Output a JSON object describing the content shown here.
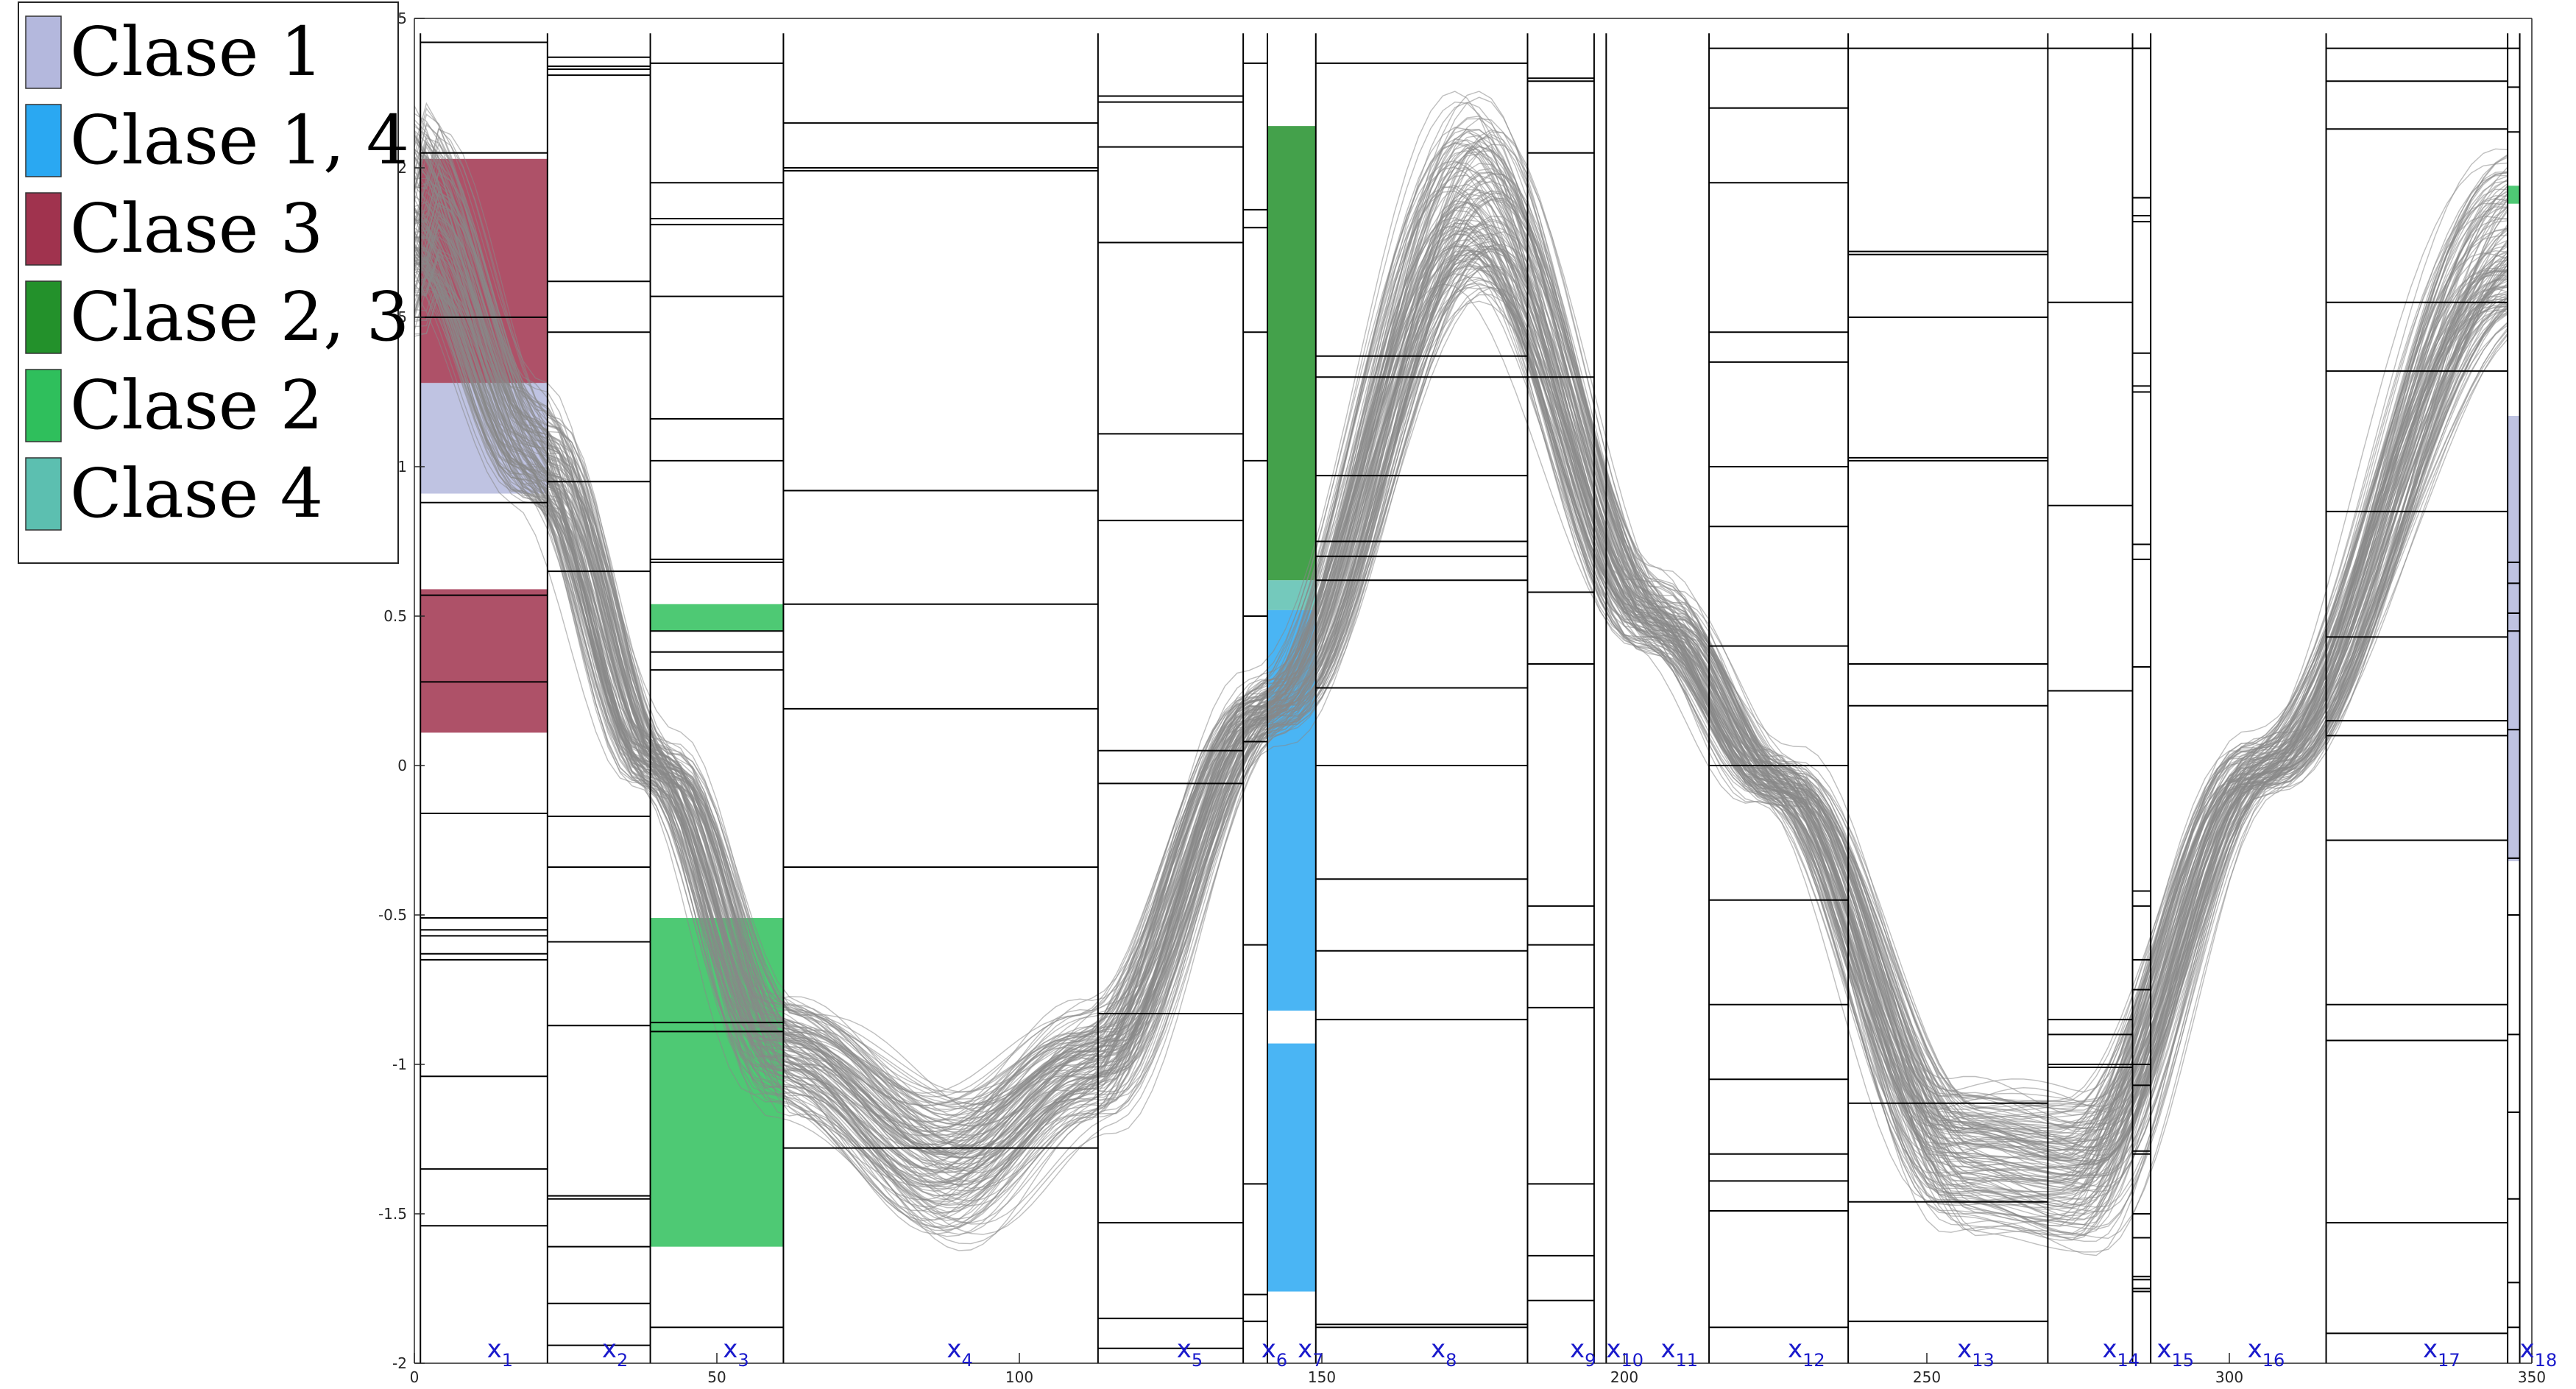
{
  "chart_data": {
    "type": "line",
    "title": "",
    "xlabel": "",
    "ylabel": "",
    "xlim": [
      0,
      350
    ],
    "ylim": [
      -2,
      2.5
    ],
    "grid": false,
    "legend_position": "top-left",
    "x_ticks": [
      0,
      50,
      100,
      150,
      200,
      250,
      300,
      350
    ],
    "x_tick_labels": [
      "0",
      "50",
      "100",
      "150",
      "200",
      "250",
      "300",
      "350"
    ],
    "y_ticks": [
      -2,
      -1.5,
      -1,
      -0.5,
      0,
      0.5,
      1,
      1.5,
      2,
      2.5
    ],
    "y_tick_labels": [
      "-2",
      "-1.5",
      "-1",
      "-0.5",
      "0",
      "0.5",
      "1",
      "1.5",
      "2",
      "2.5"
    ],
    "legend": [
      {
        "label": "Clase 1",
        "color": "#b4b8dd"
      },
      {
        "label": "Clase 1, 4",
        "color": "#2aa8f2"
      },
      {
        "label": "Clase 3",
        "color": "#a0334e"
      },
      {
        "label": "Clase 2, 3",
        "color": "#23912b"
      },
      {
        "label": "Clase 2",
        "color": "#2fbf5c"
      },
      {
        "label": "Clase 4",
        "color": "#5cbfb0"
      }
    ],
    "segment_boundaries": [
      1,
      22,
      39,
      61,
      113,
      137,
      141,
      149,
      184,
      195,
      197,
      214,
      237,
      270,
      284,
      287,
      316,
      346,
      348
    ],
    "segment_labels": [
      {
        "name": "x",
        "sub": "1",
        "x": 12
      },
      {
        "name": "x",
        "sub": "2",
        "x": 31
      },
      {
        "name": "x",
        "sub": "3",
        "x": 51
      },
      {
        "name": "x",
        "sub": "4",
        "x": 88
      },
      {
        "name": "x",
        "sub": "5",
        "x": 126
      },
      {
        "name": "x",
        "sub": "6",
        "x": 140
      },
      {
        "name": "x",
        "sub": "7",
        "x": 146
      },
      {
        "name": "x",
        "sub": "8",
        "x": 168
      },
      {
        "name": "x",
        "sub": "9",
        "x": 191
      },
      {
        "name": "x",
        "sub": "10",
        "x": 197
      },
      {
        "name": "x",
        "sub": "11",
        "x": 206
      },
      {
        "name": "x",
        "sub": "12",
        "x": 227
      },
      {
        "name": "x",
        "sub": "13",
        "x": 255
      },
      {
        "name": "x",
        "sub": "14",
        "x": 279
      },
      {
        "name": "x",
        "sub": "15",
        "x": 288
      },
      {
        "name": "x",
        "sub": "16",
        "x": 303
      },
      {
        "name": "x",
        "sub": "17",
        "x": 332
      },
      {
        "name": "x",
        "sub": "18",
        "x": 348
      }
    ],
    "segment_levels": [
      [
        2.42,
        2.05,
        1.5,
        0.88,
        0.57,
        0.28,
        -0.16,
        -0.51,
        -0.55,
        -0.57,
        -0.63,
        -0.65,
        -1.04,
        -1.35,
        -1.54
      ],
      [
        2.37,
        2.34,
        2.33,
        2.31,
        1.62,
        1.45,
        0.95,
        0.65,
        -0.17,
        -0.34,
        -0.59,
        -0.87,
        -1.44,
        -1.45,
        -1.61,
        -1.8,
        -1.94
      ],
      [
        2.35,
        1.95,
        1.83,
        1.81,
        1.57,
        1.16,
        1.02,
        0.69,
        0.68,
        0.38,
        0.45,
        0.32,
        -0.86,
        -0.89,
        -1.88
      ],
      [
        2.15,
        2.0,
        1.99,
        0.92,
        0.54,
        0.19,
        -0.34,
        -1.28
      ],
      [
        2.24,
        2.22,
        2.07,
        1.75,
        1.11,
        0.82,
        0.05,
        -0.06,
        -0.83,
        -1.53,
        -1.85,
        -1.95
      ],
      [
        2.35,
        1.86,
        1.8,
        1.45,
        1.02,
        0.5,
        0.08,
        -0.6,
        -1.4,
        -1.77,
        -1.86
      ],
      [
        2.35,
        1.37,
        1.3,
        0.97,
        0.75,
        0.7,
        0.62,
        0.26,
        0.0,
        -0.38,
        -0.62,
        -0.85,
        -1.87,
        -1.88
      ],
      [
        2.3,
        2.29,
        2.05,
        1.3,
        0.58,
        0.34,
        -0.47,
        -0.6,
        -0.81,
        -1.4,
        -1.64,
        -1.79
      ],
      [
        2.4,
        2.2,
        1.95,
        1.45,
        1.35,
        1.0,
        0.8,
        0.4,
        0.0,
        -0.45,
        -0.8,
        -1.05,
        -1.3,
        -1.39,
        -1.49,
        -1.88
      ],
      [
        2.4,
        1.72,
        1.71,
        1.5,
        1.03,
        1.02,
        0.34,
        0.2,
        -1.13,
        -1.46,
        -1.86
      ],
      [
        2.4,
        1.55,
        0.87,
        0.25,
        -0.85,
        -0.9,
        -1.0,
        -1.01
      ],
      [
        2.4,
        1.9,
        1.27,
        1.25,
        0.74,
        0.69,
        -0.65,
        -1.29,
        -1.71,
        -1.72,
        -1.76
      ],
      [
        2.4,
        2.29,
        2.13,
        1.55,
        1.32,
        0.85,
        0.43,
        0.15,
        0.1,
        -0.25,
        -0.8,
        -0.92,
        -1.53,
        -1.9
      ],
      [
        2.4,
        2.27,
        2.12,
        0.68,
        0.61,
        0.51,
        0.45,
        0.12,
        -0.31,
        -0.5,
        -0.9,
        -1.16,
        -1.45,
        -1.73,
        -1.88
      ],
      [
        2.4,
        1.84,
        1.82,
        1.38,
        0.33,
        -0.42,
        -0.47,
        -0.75,
        -1.0,
        -1.07,
        -1.3,
        -1.5,
        -1.58,
        -1.75
      ]
    ],
    "class_regions": [
      {
        "class": "Clase 3",
        "color": "#a0334e",
        "x0": 1,
        "x1": 22,
        "y0": 1.28,
        "y1": 2.03
      },
      {
        "class": "Clase 1",
        "color": "#b4b8dd",
        "x0": 1,
        "x1": 22,
        "y0": 0.91,
        "y1": 1.28
      },
      {
        "class": "Clase 3",
        "color": "#a0334e",
        "x0": 1,
        "x1": 22,
        "y0": 0.11,
        "y1": 0.59
      },
      {
        "class": "Clase 2",
        "color": "#2fbf5c",
        "x0": 39,
        "x1": 61,
        "y0": 0.45,
        "y1": 0.54
      },
      {
        "class": "Clase 2",
        "color": "#2fbf5c",
        "x0": 39,
        "x1": 61,
        "y0": -1.61,
        "y1": -0.51
      },
      {
        "class": "Clase 2, 3",
        "color": "#23912b",
        "x0": 141,
        "x1": 149,
        "y0": 0.62,
        "y1": 2.14
      },
      {
        "class": "Clase 4",
        "color": "#5cbfb0",
        "x0": 141,
        "x1": 149,
        "y0": 0.52,
        "y1": 0.62
      },
      {
        "class": "Clase 1, 4",
        "color": "#2aa8f2",
        "x0": 141,
        "x1": 149,
        "y0": -0.82,
        "y1": 0.52
      },
      {
        "class": "Clase 1, 4",
        "color": "#2aa8f2",
        "x0": 141,
        "x1": 149,
        "y0": -1.76,
        "y1": -0.93
      },
      {
        "class": "Clase 2",
        "color": "#2fbf5c",
        "x0": 346,
        "x1": 348,
        "y0": 1.88,
        "y1": 1.94
      },
      {
        "class": "Clase 1",
        "color": "#b4b8dd",
        "x0": 346,
        "x1": 348,
        "y0": -0.32,
        "y1": 1.17
      }
    ],
    "series_model": {
      "description_free": true,
      "curve_count": 140,
      "x_start": 0,
      "x_end": 347,
      "x_step": 1,
      "key_points": [
        [
          0,
          1.9
        ],
        [
          20,
          1.05
        ],
        [
          40,
          0.0
        ],
        [
          60,
          -0.95
        ],
        [
          88,
          -1.33
        ],
        [
          112,
          -1.0
        ],
        [
          141,
          0.2
        ],
        [
          175,
          1.9
        ],
        [
          205,
          0.5
        ],
        [
          225,
          -0.05
        ],
        [
          255,
          -1.3
        ],
        [
          275,
          -1.35
        ],
        [
          305,
          0.0
        ],
        [
          347,
          1.75
        ]
      ],
      "color": "#888888"
    }
  }
}
